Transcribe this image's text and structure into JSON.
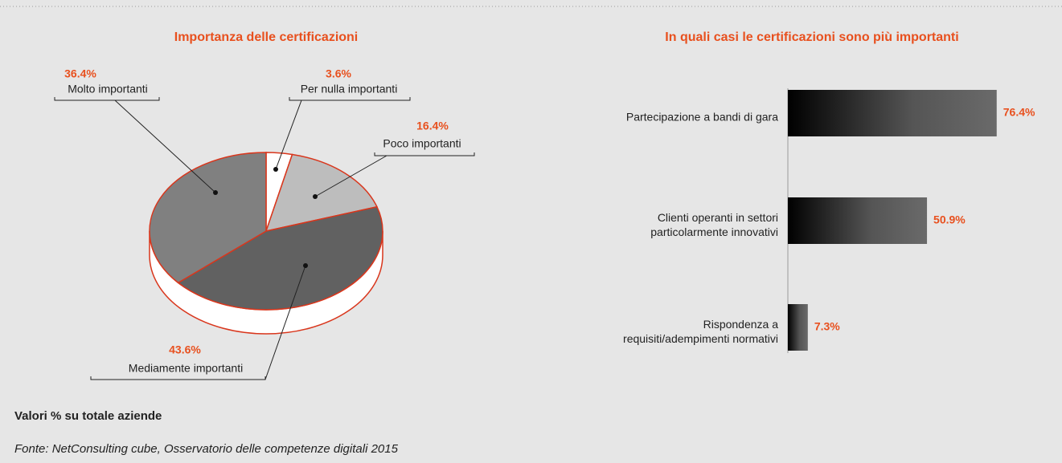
{
  "chart_data": [
    {
      "type": "pie",
      "title": "Importanza delle certificazioni",
      "categories": [
        "Per nulla importanti",
        "Poco importanti",
        "Mediamente importanti",
        "Molto importanti"
      ],
      "values": [
        3.6,
        16.4,
        43.6,
        36.4
      ],
      "value_labels": [
        "3.6%",
        "16.4%",
        "43.6%",
        "36.4%"
      ],
      "colors": [
        "#ffffff",
        "#bdbdbd",
        "#616161",
        "#808080"
      ]
    },
    {
      "type": "hbar",
      "title": "In quali casi le certificazioni sono più importanti",
      "categories": [
        "Partecipazione a bandi di gara",
        "Clienti operanti in settori\nparticolarmente innovativi",
        "Rispondenza a\nrequisiti/adempimenti normativi"
      ],
      "values": [
        76.4,
        50.9,
        7.3
      ],
      "value_labels": [
        "76.4%",
        "50.9%",
        "7.3%"
      ]
    }
  ],
  "footer": {
    "note": "Valori % su totale aziende",
    "source": "Fonte: NetConsulting cube, Osservatorio delle competenze digitali 2015"
  }
}
